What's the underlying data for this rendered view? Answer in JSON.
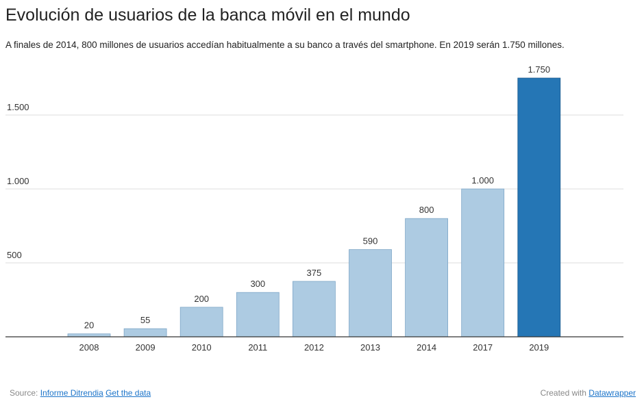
{
  "header": {
    "title": "Evolución de usuarios de la banca móvil en el mundo",
    "subtitle": "A finales de 2014, 800 millones de usuarios accedían habitualmente a su banco a través del smartphone. En 2019 serán 1.750 millones."
  },
  "chart_data": {
    "type": "bar",
    "title": "Evolución de usuarios de la banca móvil en el mundo",
    "subtitle": "A finales de 2014, 800 millones de usuarios accedían habitualmente a su banco a través del smartphone. En 2019 serán 1.750 millones.",
    "categories": [
      "2008",
      "2009",
      "2010",
      "2011",
      "2012",
      "2013",
      "2014",
      "2017",
      "2019"
    ],
    "values": [
      20,
      55,
      200,
      300,
      375,
      590,
      800,
      1000,
      1750
    ],
    "value_labels": [
      "20",
      "55",
      "200",
      "300",
      "375",
      "590",
      "800",
      "1.000",
      "1.750"
    ],
    "highlighted_category": "2019",
    "y_ticks": [
      500,
      1000,
      1500
    ],
    "y_tick_labels": [
      "500",
      "1.000",
      "1.500"
    ],
    "ylim": [
      0,
      1750
    ],
    "grid": true,
    "legend": "none",
    "colors": {
      "bar": "#adcbe2",
      "bar_stroke": "#7ea6c7",
      "highlight": "#2576b5",
      "highlight_stroke": "#1c5a8c",
      "grid": "#dddddd",
      "baseline": "#333333"
    }
  },
  "footer": {
    "source_prefix": "Source:",
    "source_link": "Informe Ditrendia",
    "data_link": "Get the data",
    "created_prefix": "Created with",
    "created_link": "Datawrapper"
  }
}
